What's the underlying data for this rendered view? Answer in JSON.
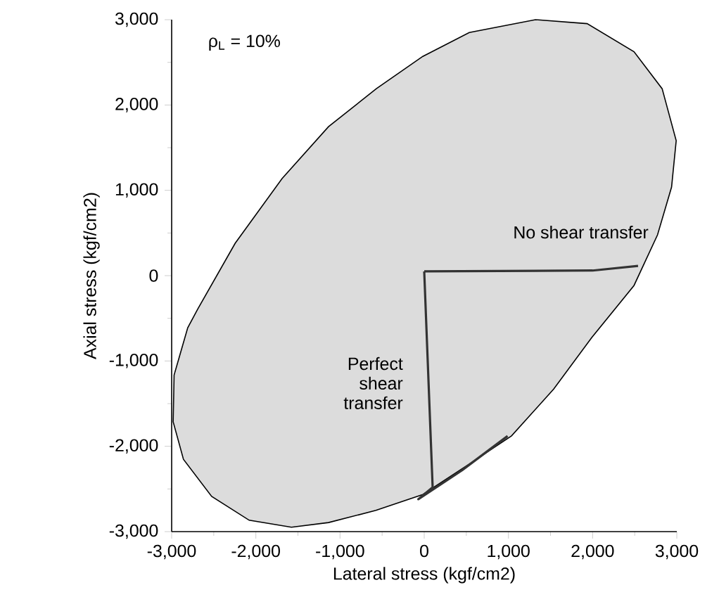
{
  "chart_data": {
    "type": "line",
    "xlabel": "Lateral stress (kgf/cm2)",
    "ylabel": "Axial stress (kgf/cm2)",
    "annotations": [
      "ρ$_{L}$ = 10%"
    ],
    "series": [
      {
        "type": "area",
        "color": "#dcdcdc",
        "x": [
          -2982,
          -2971,
          -2809,
          -2692,
          -2246,
          -1689,
          -1137,
          -569,
          -17,
          535,
          1321,
          1935,
          2492,
          2826,
          2993,
          2938,
          2771,
          2492,
          1990,
          1538,
          1037,
          535,
          -17,
          -574,
          -1137,
          -1577,
          -2079,
          -2525,
          -2860
        ],
        "values": [
          -1713,
          -1165,
          -610,
          -395,
          379,
          1137,
          1746,
          2191,
          2570,
          2850,
          3000,
          2954,
          2624,
          2191,
          1582,
          1038,
          478,
          -115,
          -725,
          -1329,
          -1878,
          -2208,
          -2565,
          -2751,
          -2894,
          -2949,
          -2867,
          -2587,
          -2153
        ]
      },
      {
        "name": "No shear transfer",
        "color": "#333333",
        "x": [
          0,
          2000,
          2540
        ],
        "values": [
          50,
          60,
          115
        ]
      },
      {
        "name": "Perfect shear transfer",
        "color": "#333333",
        "x": [
          0,
          100,
          -70,
          450,
          990
        ],
        "values": [
          50,
          -2480,
          -2620,
          -2280,
          -1880
        ]
      }
    ],
    "xlim": [
      -3000,
      3000
    ],
    "ylim": [
      -3000,
      3000
    ],
    "xticks": [
      {
        "value": -3000,
        "label": "-3,000"
      },
      {
        "value": -2000,
        "label": "-2,000"
      },
      {
        "value": -1000,
        "label": "-1,000"
      },
      0,
      {
        "value": 1000,
        "label": "1,000"
      },
      {
        "value": 2000,
        "label": "2,000"
      },
      {
        "value": 3000,
        "label": "3,000"
      }
    ],
    "yticks": [
      {
        "value": -3000,
        "label": "-3,000"
      },
      {
        "value": -2000,
        "label": "-2,000"
      },
      {
        "value": -1000,
        "label": "-1,000"
      },
      0,
      {
        "value": 1000,
        "label": "1,000"
      },
      {
        "value": 2000,
        "label": "2,000"
      },
      {
        "value": 3000,
        "label": "3,000"
      }
    ],
    "grid": false,
    "legend": false,
    "marker": "none",
    "line_style": "solid"
  }
}
